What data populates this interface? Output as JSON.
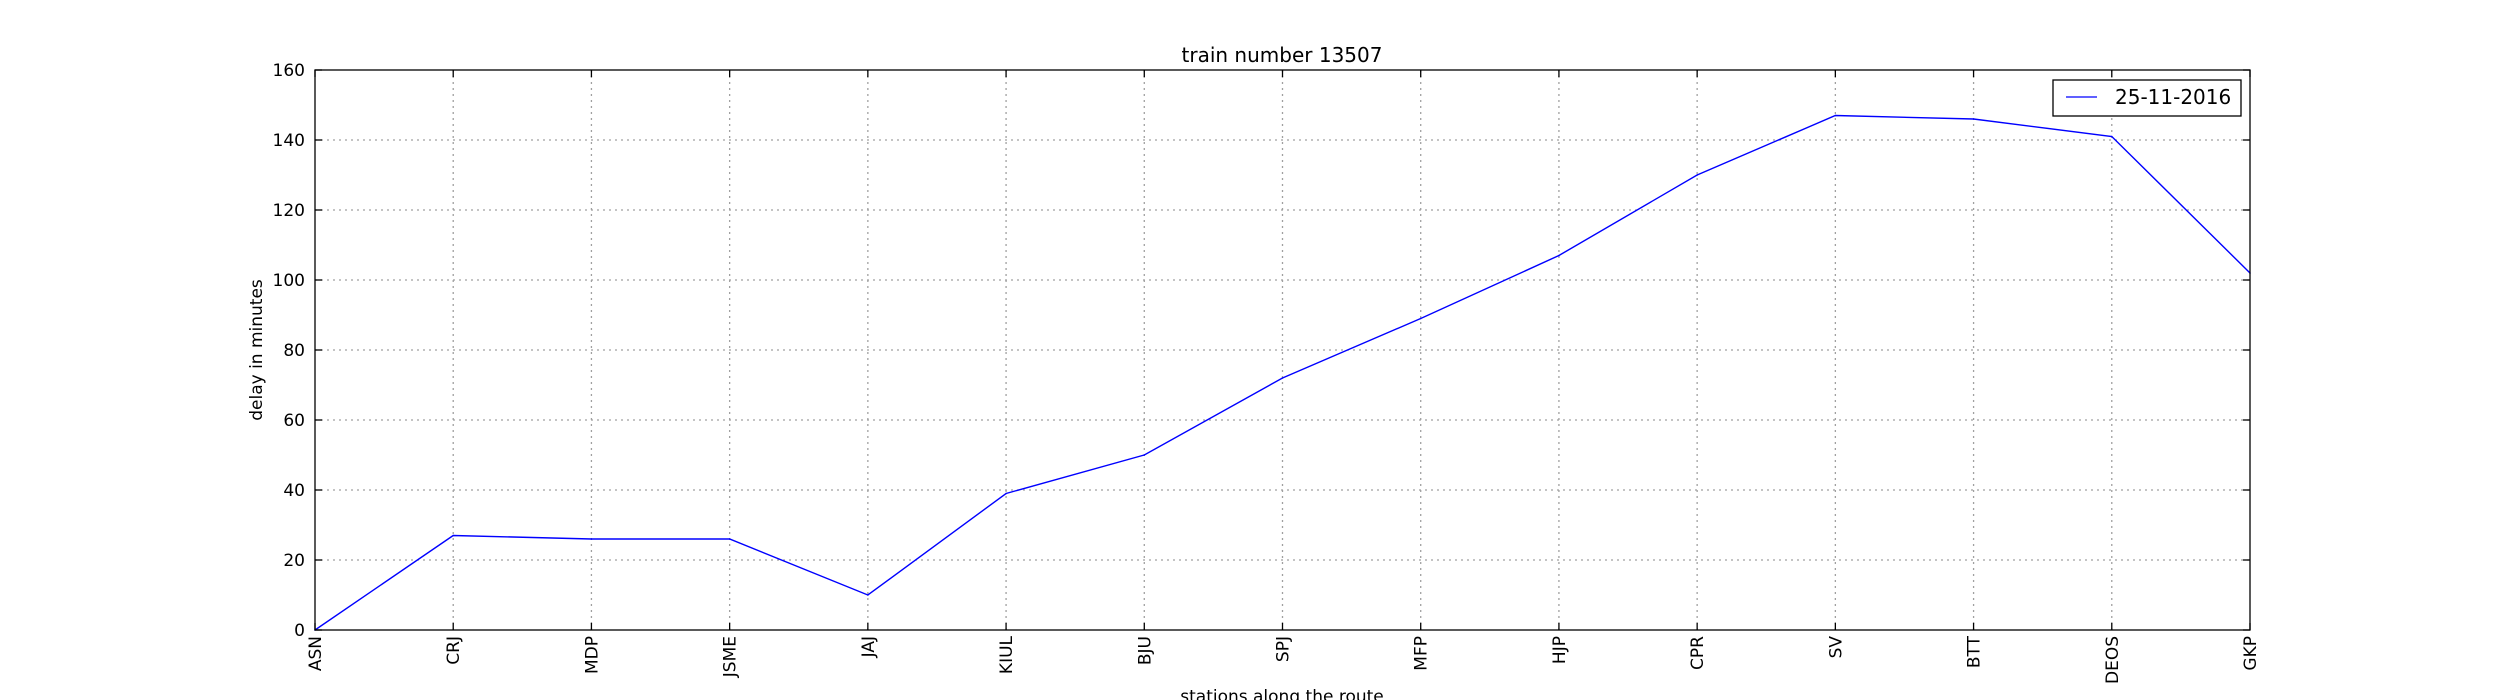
{
  "chart_data": {
    "type": "line",
    "title": "train number 13507",
    "xlabel": "stations along the route",
    "ylabel": "delay in minutes",
    "categories": [
      "ASN",
      "CRJ",
      "MDP",
      "JSME",
      "JAJ",
      "KIUL",
      "BJU",
      "SPJ",
      "MFP",
      "HJP",
      "CPR",
      "SV",
      "BTT",
      "DEOS",
      "GKP"
    ],
    "series": [
      {
        "name": "25-11-2016",
        "color": "#0000ff",
        "values": [
          0,
          27,
          26,
          26,
          10,
          39,
          50,
          72,
          89,
          107,
          130,
          147,
          146,
          141,
          102
        ]
      }
    ],
    "ylim": [
      0,
      160
    ],
    "yticks": [
      0,
      20,
      40,
      60,
      80,
      100,
      120,
      140,
      160
    ],
    "grid": true,
    "legend_position": "top-right"
  }
}
